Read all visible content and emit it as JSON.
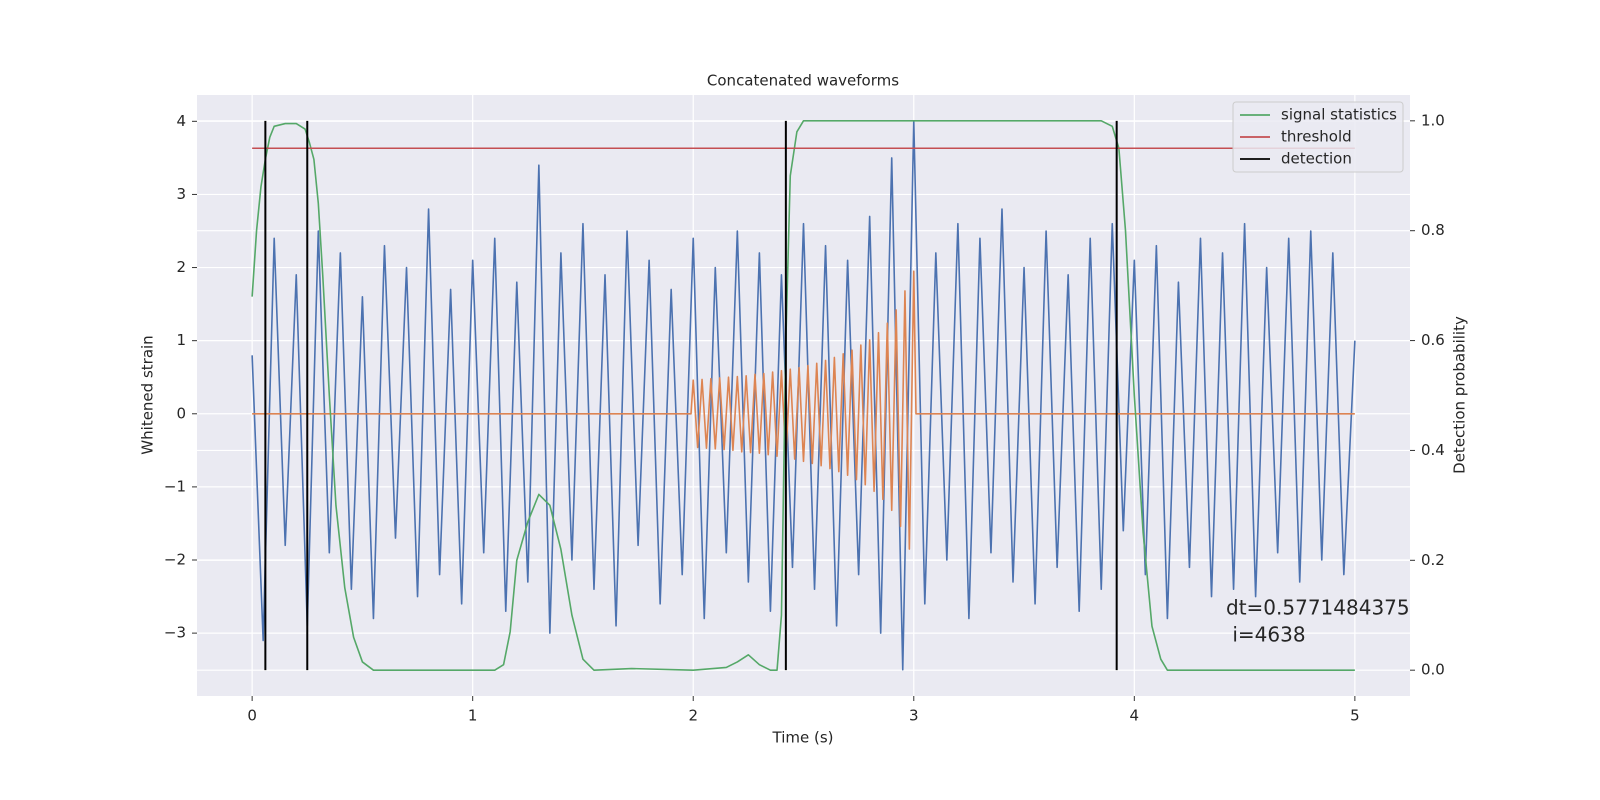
{
  "chart_data": {
    "type": "line",
    "title": "Concatenated waveforms",
    "xlabel": "Time (s)",
    "ylabel": "Whitened strain",
    "y2label": "Detection probability",
    "xlim": [
      -0.25,
      5.25
    ],
    "ylim": [
      -3.86,
      4.36
    ],
    "y2lim": [
      -0.047,
      1.047
    ],
    "xticks": [
      0,
      1,
      2,
      3,
      4,
      5
    ],
    "yticks": [
      {
        "value": -3,
        "label": "−3"
      },
      {
        "value": -2,
        "label": "−2"
      },
      {
        "value": -1,
        "label": "−1"
      },
      0,
      1,
      2,
      3,
      4
    ],
    "y2ticks": [
      {
        "value": 0,
        "label": "0.0"
      },
      0.2,
      0.4,
      0.6,
      0.8,
      {
        "value": 1,
        "label": "1.0"
      }
    ],
    "grid": true,
    "legend_corner": "upper right",
    "series": [
      {
        "color": "#4c72b0",
        "x": [
          0,
          0.05,
          0.1,
          0.15,
          0.2,
          0.25,
          0.3,
          0.35,
          0.4,
          0.45,
          0.5,
          0.55,
          0.6,
          0.65,
          0.7,
          0.75,
          0.8,
          0.85,
          0.9,
          0.95,
          1,
          1.05,
          1.1,
          1.15,
          1.2,
          1.25,
          1.3,
          1.35,
          1.4,
          1.45,
          1.5,
          1.55,
          1.6,
          1.65,
          1.7,
          1.75,
          1.8,
          1.85,
          1.9,
          1.95,
          2,
          2.05,
          2.1,
          2.15,
          2.2,
          2.25,
          2.3,
          2.35,
          2.4,
          2.45,
          2.5,
          2.55,
          2.6,
          2.65,
          2.7,
          2.75,
          2.8,
          2.85,
          2.9,
          2.95,
          3,
          3.05,
          3.1,
          3.15,
          3.2,
          3.25,
          3.3,
          3.35,
          3.4,
          3.45,
          3.5,
          3.55,
          3.6,
          3.65,
          3.7,
          3.75,
          3.8,
          3.85,
          3.9,
          3.95,
          4,
          4.05,
          4.1,
          4.15,
          4.2,
          4.25,
          4.3,
          4.35,
          4.4,
          4.45,
          4.5,
          4.55,
          4.6,
          4.65,
          4.7,
          4.75,
          4.8,
          4.85,
          4.9,
          4.95,
          5
        ],
        "values": [
          0.8,
          -3.1,
          2.4,
          -1.8,
          1.9,
          -2.9,
          2.5,
          -1.9,
          2.2,
          -2.4,
          1.6,
          -2.8,
          2.3,
          -1.7,
          2.0,
          -2.5,
          2.8,
          -2.2,
          1.7,
          -2.6,
          2.1,
          -1.9,
          2.4,
          -2.7,
          1.8,
          -2.3,
          3.4,
          -3.0,
          2.2,
          -2.0,
          2.6,
          -2.4,
          1.9,
          -2.9,
          2.5,
          -1.8,
          2.1,
          -2.6,
          1.7,
          -2.2,
          2.4,
          -2.8,
          2.0,
          -1.9,
          2.5,
          -2.3,
          2.2,
          -2.7,
          1.9,
          -2.1,
          2.6,
          -2.4,
          2.3,
          -2.9,
          2.1,
          -2.2,
          2.7,
          -3.0,
          3.5,
          -3.5,
          4.0,
          -2.6,
          2.2,
          -2.0,
          2.6,
          -2.8,
          2.4,
          -1.9,
          2.8,
          -2.3,
          2.0,
          -2.6,
          2.5,
          -2.1,
          1.9,
          -2.7,
          2.4,
          -2.4,
          2.6,
          -1.6,
          2.1,
          -2.2,
          2.3,
          -2.8,
          1.8,
          -2.1,
          2.4,
          -2.5,
          2.2,
          -2.4,
          2.6,
          -2.5,
          2.0,
          -1.9,
          2.4,
          -2.3,
          2.5,
          -2.0,
          2.2,
          -2.2,
          1.0
        ]
      },
      {
        "color": "#dd8452",
        "x": [
          0,
          1.99,
          2,
          2.02,
          2.04,
          2.06,
          2.08,
          2.1,
          2.12,
          2.14,
          2.16,
          2.18,
          2.2,
          2.22,
          2.24,
          2.26,
          2.28,
          2.3,
          2.32,
          2.34,
          2.36,
          2.38,
          2.4,
          2.42,
          2.44,
          2.46,
          2.48,
          2.5,
          2.52,
          2.54,
          2.56,
          2.58,
          2.6,
          2.62,
          2.64,
          2.66,
          2.68,
          2.7,
          2.72,
          2.74,
          2.76,
          2.78,
          2.8,
          2.82,
          2.84,
          2.86,
          2.88,
          2.9,
          2.92,
          2.94,
          2.96,
          2.98,
          3,
          3.01,
          5
        ],
        "values": [
          0,
          0,
          0.46,
          -0.46,
          0.47,
          -0.47,
          0.48,
          -0.48,
          0.49,
          -0.49,
          0.5,
          -0.5,
          0.51,
          -0.52,
          0.52,
          -0.53,
          0.54,
          -0.54,
          0.55,
          -0.56,
          0.57,
          -0.58,
          0.59,
          -0.6,
          0.61,
          -0.62,
          0.63,
          -0.65,
          0.66,
          -0.68,
          0.69,
          -0.71,
          0.73,
          -0.75,
          0.77,
          -0.79,
          0.82,
          -0.84,
          0.87,
          -0.9,
          0.94,
          -0.97,
          1.01,
          -1.06,
          1.11,
          -1.17,
          1.24,
          -1.32,
          1.42,
          -1.54,
          1.68,
          -1.85,
          1.95,
          0,
          0
        ]
      },
      {
        "name": "signal statistics",
        "color": "#55a868",
        "axis": "y2",
        "x": [
          0,
          0.02,
          0.04,
          0.06,
          0.08,
          0.1,
          0.15,
          0.2,
          0.24,
          0.26,
          0.28,
          0.3,
          0.32,
          0.35,
          0.38,
          0.42,
          0.46,
          0.5,
          0.55,
          1.1,
          1.14,
          1.17,
          1.2,
          1.25,
          1.3,
          1.35,
          1.4,
          1.45,
          1.5,
          1.55,
          1.72,
          2,
          2.15,
          2.2,
          2.25,
          2.3,
          2.35,
          2.38,
          2.4,
          2.42,
          2.44,
          2.47,
          2.5,
          3.85,
          3.9,
          3.93,
          3.96,
          4,
          4.04,
          4.08,
          4.12,
          4.15,
          5
        ],
        "values": [
          0.68,
          0.8,
          0.88,
          0.93,
          0.97,
          0.99,
          0.995,
          0.995,
          0.985,
          0.96,
          0.93,
          0.85,
          0.72,
          0.5,
          0.3,
          0.15,
          0.06,
          0.015,
          0,
          0,
          0.01,
          0.07,
          0.2,
          0.27,
          0.32,
          0.3,
          0.22,
          0.1,
          0.02,
          0,
          0.003,
          0,
          0.005,
          0.015,
          0.028,
          0.01,
          0,
          0,
          0.1,
          0.6,
          0.9,
          0.98,
          1,
          1,
          0.99,
          0.95,
          0.8,
          0.5,
          0.25,
          0.08,
          0.02,
          0,
          0
        ]
      },
      {
        "name": "threshold",
        "color": "#c44e52",
        "axis": "y2",
        "value": 0.95
      },
      {
        "name": "detection",
        "color": "#000000",
        "axis": "y2",
        "x": [
          0.06,
          0.25,
          2.42,
          3.92
        ]
      }
    ],
    "annotation": [
      "dt=0.5771484375",
      " i=4638"
    ]
  }
}
